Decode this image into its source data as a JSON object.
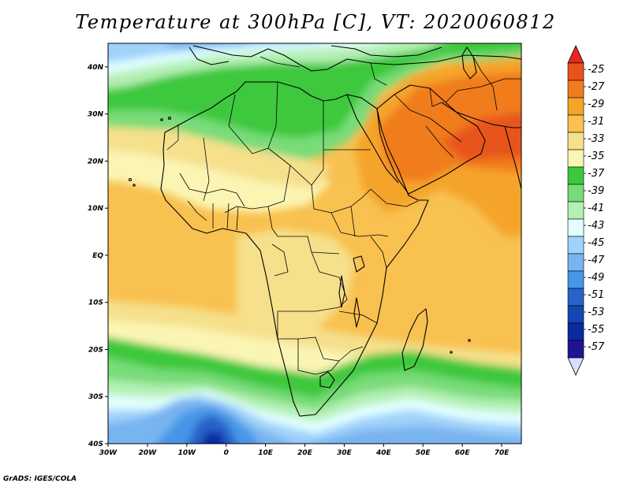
{
  "title": "Temperature at 300hPa [C], VT: 2020060812",
  "footer": "GrADS: IGES/COLA",
  "map": {
    "region": "Africa / Middle East",
    "lon_range": [
      -30,
      75
    ],
    "lat_range": [
      -40,
      45
    ],
    "x_ticks": [
      "30W",
      "20W",
      "10W",
      "0",
      "10E",
      "20E",
      "30E",
      "40E",
      "50E",
      "60E",
      "70E"
    ],
    "y_ticks": [
      "40S",
      "30S",
      "20S",
      "10S",
      "EQ",
      "10N",
      "20N",
      "30N",
      "40N"
    ]
  },
  "colorbar": {
    "labels": [
      "-25",
      "-27",
      "-29",
      "-31",
      "-33",
      "-35",
      "-37",
      "-39",
      "-41",
      "-43",
      "-45",
      "-47",
      "-49",
      "-51",
      "-53",
      "-55",
      "-57"
    ],
    "colors": [
      "#e8541c",
      "#f07c1e",
      "#f5a42a",
      "#f8c150",
      "#f6e08c",
      "#fbf5b4",
      "#3cc83c",
      "#78dc78",
      "#b4f0b4",
      "#e1ffff",
      "#a0d2fa",
      "#78b4f0",
      "#4696e6",
      "#2864c8",
      "#1446b4",
      "#0a2aa0",
      "#1e1496"
    ],
    "top_arrow_color": "#e8281c",
    "bottom_arrow_color": "#dcdcff"
  }
}
